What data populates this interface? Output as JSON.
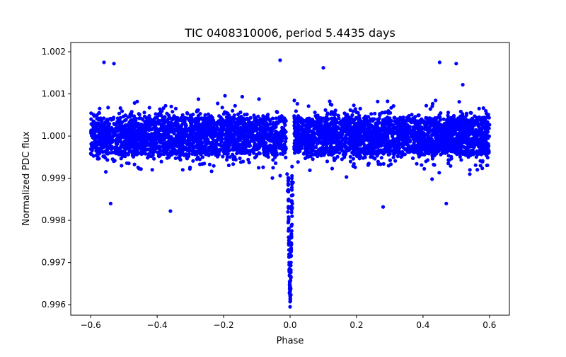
{
  "chart_data": {
    "type": "scatter",
    "title": "TIC 0408310006, period 5.4435 days",
    "xlabel": "Phase",
    "ylabel": "Normalized PDC flux",
    "xlim": [
      -0.66,
      0.66
    ],
    "ylim": [
      0.99575,
      1.00222
    ],
    "xticks": [
      -0.6,
      -0.4,
      -0.2,
      0.0,
      0.2,
      0.4,
      0.6
    ],
    "xtick_labels": [
      "−0.6",
      "−0.4",
      "−0.2",
      "0.0",
      "0.2",
      "0.4",
      "0.6"
    ],
    "yticks": [
      0.996,
      0.997,
      0.998,
      0.999,
      1.0,
      1.001,
      1.002
    ],
    "ytick_labels": [
      "0.996",
      "0.997",
      "0.998",
      "0.999",
      "1.000",
      "1.001",
      "1.002"
    ],
    "grid": false,
    "legend": "none",
    "marker_color": "#0000ff",
    "series": [
      {
        "description": "phase-folded light curve; baseline flux ~1.000 with scatter ~0.0004 across phase -0.6 to 0.6, gap near phase 0, transit dip to ~0.9962 centered at phase 0.0",
        "baseline": {
          "x_range": [
            -0.6,
            0.6
          ],
          "center": 1.0,
          "core_halfwidth": 0.00055,
          "outlier_range": [
            0.9982,
            1.0018
          ]
        },
        "transit": {
          "center_phase": 0.0,
          "min_flux": 0.99595,
          "points": [
            [
              -0.0055,
              0.99795
            ],
            [
              -0.005,
              0.99775
            ],
            [
              -0.0045,
              0.9976
            ],
            [
              -0.004,
              0.99745
            ],
            [
              -0.0035,
              0.9973
            ],
            [
              -0.003,
              0.99715
            ],
            [
              -0.0025,
              0.997
            ],
            [
              -0.002,
              0.99685
            ],
            [
              -0.0015,
              0.9967
            ],
            [
              -0.001,
              0.9965
            ],
            [
              -0.0005,
              0.9963
            ],
            [
              0.0,
              0.99595
            ],
            [
              0.0005,
              0.9962
            ],
            [
              0.001,
              0.9964
            ],
            [
              0.0015,
              0.99665
            ],
            [
              0.002,
              0.9968
            ],
            [
              0.0025,
              0.997
            ],
            [
              0.003,
              0.99715
            ],
            [
              0.0035,
              0.9973
            ],
            [
              0.004,
              0.99745
            ],
            [
              0.0045,
              0.9976
            ],
            [
              0.005,
              0.99775
            ],
            [
              0.0055,
              0.9979
            ],
            [
              0.006,
              0.9981
            ],
            [
              -0.0065,
              0.9982
            ],
            [
              0.0065,
              0.9983
            ],
            [
              0.007,
              0.9984
            ],
            [
              -0.0075,
              0.9987
            ],
            [
              0.008,
              0.9986
            ],
            [
              -0.009,
              0.9991
            ],
            [
              0.009,
              0.9989
            ],
            [
              -0.004,
              0.9985
            ],
            [
              0.004,
              0.9983
            ]
          ]
        },
        "notable_outliers": [
          [
            -0.56,
            1.00175
          ],
          [
            -0.53,
            1.00172
          ],
          [
            -0.54,
            0.9984
          ],
          [
            -0.36,
            0.99822
          ],
          [
            -0.03,
            1.0018
          ],
          [
            0.1,
            1.00162
          ],
          [
            0.28,
            0.99832
          ],
          [
            0.45,
            1.00175
          ],
          [
            0.5,
            1.00172
          ],
          [
            0.47,
            0.9984
          ]
        ]
      }
    ]
  }
}
